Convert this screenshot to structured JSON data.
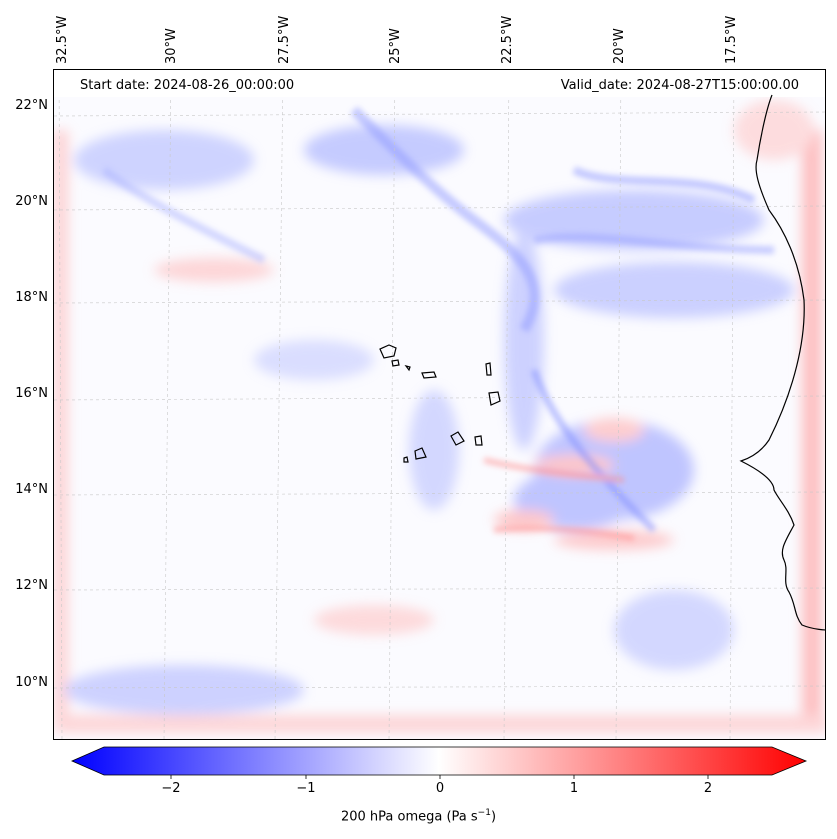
{
  "header": {
    "start_date": "Start date: 2024-08-26_00:00:00",
    "valid_date": "Valid_date: 2024-08-27T15:00:00.00"
  },
  "lat_labels": [
    "22°N",
    "20°N",
    "18°N",
    "16°N",
    "14°N",
    "12°N",
    "10°N"
  ],
  "lon_labels": [
    "32.5°W",
    "30°W",
    "27.5°W",
    "25°W",
    "22.5°W",
    "20°W",
    "17.5°W"
  ],
  "colorbar": {
    "label": "200 hPa omega (Pa s",
    "label_exp": "−1",
    "label_end": ")",
    "ticks": [
      "−2",
      "−1",
      "0",
      "1",
      "2"
    ],
    "range": [
      -2.75,
      2.75
    ],
    "colors": {
      "neg": "#0000ff",
      "mid": "#ffffff",
      "pos": "#ff0000"
    }
  },
  "map": {
    "coastline_color": "#000000",
    "grid_color": "#c8c8c8"
  }
}
